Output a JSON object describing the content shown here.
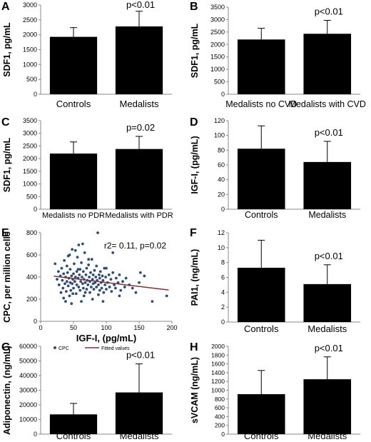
{
  "chart_data": [
    {
      "panel_label": "A",
      "type": "bar",
      "ylabel": "SDF1, pg/mL",
      "ylim": [
        0,
        3000
      ],
      "yticks": [
        0,
        500,
        1000,
        1500,
        2000,
        2500,
        3000
      ],
      "categories": [
        "Controls",
        "Medalists"
      ],
      "values": [
        1930,
        2280
      ],
      "errors": [
        310,
        510
      ],
      "annotation": "p<0.01"
    },
    {
      "panel_label": "B",
      "type": "bar",
      "ylabel": "SDF1, pg/mL",
      "ylim": [
        0,
        3500
      ],
      "yticks": [
        0,
        500,
        1000,
        1500,
        2000,
        2500,
        3000,
        3500
      ],
      "categories": [
        "Medalists no CVD",
        "Medalists with CVD"
      ],
      "values": [
        2200,
        2430
      ],
      "errors": [
        450,
        540
      ],
      "annotation": "p<0.01"
    },
    {
      "panel_label": "C",
      "type": "bar",
      "ylabel": "SDF1, pg/mL",
      "ylim": [
        0,
        3500
      ],
      "yticks": [
        0,
        500,
        1000,
        1500,
        2000,
        2500,
        3000,
        3500
      ],
      "categories": [
        "Medalists no PDR",
        "Medalists with PDR"
      ],
      "values": [
        2200,
        2380
      ],
      "errors": [
        460,
        500
      ],
      "annotation": "p=0.02"
    },
    {
      "panel_label": "D",
      "type": "bar",
      "ylabel": "IGF-I, (pg/mL)",
      "ylim": [
        0,
        120
      ],
      "yticks": [
        0,
        20,
        40,
        60,
        80,
        100,
        120
      ],
      "categories": [
        "Controls",
        "Medalists"
      ],
      "values": [
        82,
        64
      ],
      "errors": [
        31,
        28
      ],
      "annotation": "p<0.01"
    },
    {
      "panel_label": "E",
      "type": "scatter",
      "xlabel": "IGF-I, (pg/mL)",
      "ylabel": "CPC, per million cells",
      "xlim": [
        0,
        200
      ],
      "ylim": [
        0,
        800
      ],
      "xticks": [
        0,
        50,
        100,
        150,
        200
      ],
      "yticks": [
        0,
        200,
        400,
        600,
        800
      ],
      "annotation": "r2= 0.11, p=0.02",
      "legend": [
        "CPC",
        "Fitted values"
      ],
      "fit_line": [
        [
          20,
          408
        ],
        [
          195,
          283
        ]
      ],
      "points": [
        [
          22,
          520
        ],
        [
          25,
          380
        ],
        [
          27,
          450
        ],
        [
          28,
          330
        ],
        [
          30,
          410
        ],
        [
          31,
          260
        ],
        [
          32,
          480
        ],
        [
          33,
          370
        ],
        [
          34,
          300
        ],
        [
          35,
          430
        ],
        [
          36,
          550
        ],
        [
          37,
          340
        ],
        [
          38,
          400
        ],
        [
          39,
          270
        ],
        [
          40,
          500
        ],
        [
          40,
          360
        ],
        [
          41,
          440
        ],
        [
          42,
          320
        ],
        [
          43,
          390
        ],
        [
          44,
          600
        ],
        [
          45,
          350
        ],
        [
          45,
          470
        ],
        [
          46,
          280
        ],
        [
          47,
          410
        ],
        [
          48,
          650
        ],
        [
          48,
          340
        ],
        [
          49,
          380
        ],
        [
          50,
          430
        ],
        [
          50,
          300
        ],
        [
          51,
          520
        ],
        [
          52,
          360
        ],
        [
          53,
          400
        ],
        [
          54,
          250
        ],
        [
          55,
          450
        ],
        [
          55,
          330
        ],
        [
          56,
          580
        ],
        [
          57,
          390
        ],
        [
          58,
          310
        ],
        [
          59,
          420
        ],
        [
          60,
          470
        ],
        [
          60,
          280
        ],
        [
          61,
          360
        ],
        [
          62,
          530
        ],
        [
          63,
          400
        ],
        [
          64,
          340
        ],
        [
          65,
          300
        ],
        [
          65,
          450
        ],
        [
          66,
          380
        ],
        [
          67,
          620
        ],
        [
          68,
          350
        ],
        [
          69,
          420
        ],
        [
          70,
          290
        ],
        [
          70,
          480
        ],
        [
          71,
          370
        ],
        [
          72,
          330
        ],
        [
          73,
          510
        ],
        [
          74,
          400
        ],
        [
          75,
          360
        ],
        [
          75,
          260
        ],
        [
          76,
          440
        ],
        [
          77,
          310
        ],
        [
          78,
          560
        ],
        [
          79,
          380
        ],
        [
          80,
          340
        ],
        [
          80,
          420
        ],
        [
          81,
          290
        ],
        [
          82,
          460
        ],
        [
          83,
          350
        ],
        [
          84,
          400
        ],
        [
          85,
          310
        ],
        [
          85,
          500
        ],
        [
          86,
          370
        ],
        [
          87,
          800
        ],
        [
          88,
          330
        ],
        [
          89,
          420
        ],
        [
          90,
          280
        ],
        [
          90,
          390
        ],
        [
          91,
          450
        ],
        [
          92,
          350
        ],
        [
          93,
          300
        ],
        [
          94,
          410
        ],
        [
          95,
          370
        ],
        [
          96,
          260
        ],
        [
          97,
          480
        ],
        [
          98,
          330
        ],
        [
          99,
          400
        ],
        [
          100,
          290
        ],
        [
          102,
          350
        ],
        [
          104,
          420
        ],
        [
          105,
          310
        ],
        [
          107,
          380
        ],
        [
          108,
          270
        ],
        [
          110,
          440
        ],
        [
          112,
          330
        ],
        [
          114,
          300
        ],
        [
          115,
          390
        ],
        [
          118,
          350
        ],
        [
          120,
          420
        ],
        [
          122,
          280
        ],
        [
          125,
          360
        ],
        [
          128,
          310
        ],
        [
          130,
          390
        ],
        [
          135,
          330
        ],
        [
          140,
          300
        ],
        [
          145,
          260
        ],
        [
          150,
          350
        ],
        [
          152,
          440
        ],
        [
          158,
          410
        ],
        [
          170,
          180
        ],
        [
          192,
          230
        ],
        [
          110,
          620
        ],
        [
          58,
          690
        ],
        [
          64,
          700
        ],
        [
          53,
          640
        ],
        [
          42,
          590
        ],
        [
          38,
          180
        ],
        [
          47,
          160
        ],
        [
          62,
          180
        ],
        [
          79,
          200
        ],
        [
          95,
          180
        ],
        [
          66,
          230
        ],
        [
          88,
          240
        ],
        [
          120,
          230
        ],
        [
          100,
          480
        ],
        [
          73,
          560
        ],
        [
          57,
          470
        ],
        [
          49,
          250
        ],
        [
          35,
          210
        ],
        [
          44,
          230
        ],
        [
          68,
          260
        ]
      ]
    },
    {
      "panel_label": "F",
      "type": "bar",
      "ylabel": "PAI1, (ng/mL)",
      "ylim": [
        0,
        12
      ],
      "yticks": [
        0,
        2,
        4,
        6,
        8,
        10,
        12
      ],
      "categories": [
        "Controls",
        "Medalists"
      ],
      "values": [
        7.3,
        5.1
      ],
      "errors": [
        3.7,
        2.6
      ],
      "annotation": "p<0.01"
    },
    {
      "panel_label": "G",
      "type": "bar",
      "ylabel": "Adiponectin, (ng/mL)",
      "ylim": [
        0,
        60000
      ],
      "yticks": [
        0,
        10000,
        20000,
        30000,
        40000,
        50000,
        60000
      ],
      "categories": [
        "Controls",
        "Medalists"
      ],
      "values": [
        13500,
        28500
      ],
      "errors": [
        7500,
        19500
      ],
      "annotation": "p<0.01"
    },
    {
      "panel_label": "H",
      "type": "bar",
      "ylabel": "sVCAM (ng/mL)",
      "ylim": [
        0,
        2000
      ],
      "yticks": [
        0,
        200,
        400,
        600,
        800,
        1000,
        1200,
        1400,
        1600,
        1800,
        2000
      ],
      "categories": [
        "Controls",
        "Medalists"
      ],
      "values": [
        910,
        1250
      ],
      "errors": [
        540,
        510
      ],
      "annotation": "p<0.01"
    }
  ],
  "colors": {
    "bar": "#000000",
    "point": "#2b4c7e",
    "fit_line": "#8b2f2f"
  }
}
